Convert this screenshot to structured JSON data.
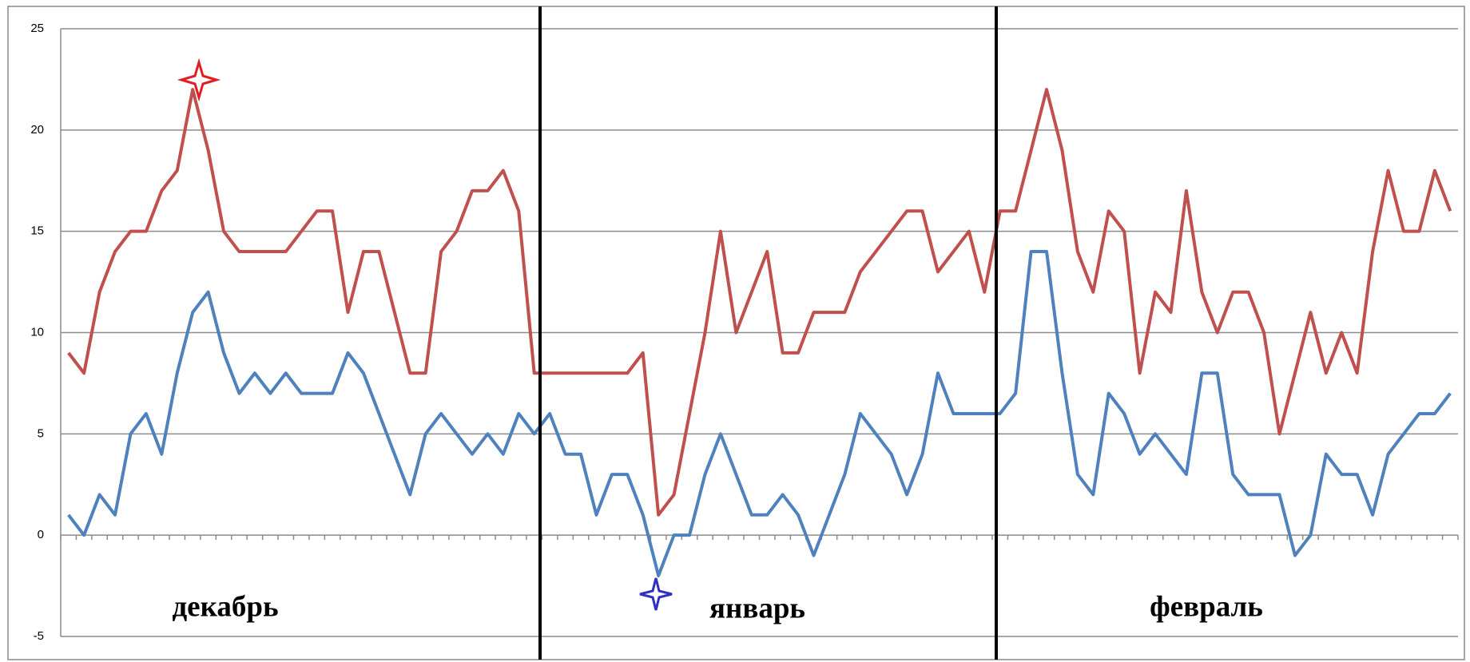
{
  "chart_data": {
    "type": "line",
    "annotations": [
      "декабрь",
      "январь",
      "февраль"
    ],
    "series": [
      {
        "color": "#c0504d",
        "values": [
          9,
          8,
          12,
          14,
          15,
          15,
          17,
          18,
          22,
          19,
          15,
          14,
          14,
          14,
          14,
          15,
          16,
          16,
          11,
          14,
          14,
          11,
          8,
          8,
          14,
          15,
          17,
          17,
          18,
          16,
          8,
          8,
          8,
          8,
          8,
          8,
          8,
          9,
          1,
          2,
          6,
          10,
          15,
          10,
          12,
          14,
          9,
          9,
          11,
          11,
          11,
          13,
          14,
          15,
          16,
          16,
          13,
          14,
          15,
          12,
          16,
          16,
          19,
          22,
          19,
          14,
          12,
          16,
          15,
          8,
          12,
          11,
          17,
          12,
          10,
          12,
          12,
          10,
          5,
          8,
          11,
          8,
          10,
          8,
          14,
          18,
          15,
          15,
          18,
          16
        ]
      },
      {
        "color": "#4f81bd",
        "values": [
          1,
          0,
          2,
          1,
          5,
          6,
          4,
          8,
          11,
          12,
          9,
          7,
          8,
          7,
          8,
          7,
          7,
          7,
          9,
          8,
          6,
          4,
          2,
          5,
          6,
          5,
          4,
          5,
          4,
          6,
          5,
          6,
          4,
          4,
          1,
          3,
          3,
          1,
          -2,
          0,
          0,
          3,
          5,
          3,
          1,
          1,
          2,
          1,
          -1,
          1,
          3,
          6,
          5,
          4,
          2,
          4,
          8,
          6,
          6,
          6,
          6,
          7,
          14,
          14,
          8,
          3,
          2,
          7,
          6,
          4,
          5,
          4,
          3,
          8,
          8,
          3,
          2,
          2,
          2,
          -1,
          0,
          4,
          3,
          3,
          1,
          4,
          5,
          6,
          6,
          7
        ]
      }
    ],
    "ylim": [
      -5,
      25
    ],
    "yticks": [
      -5,
      0,
      5,
      10,
      15,
      20,
      25
    ],
    "grid": true
  }
}
